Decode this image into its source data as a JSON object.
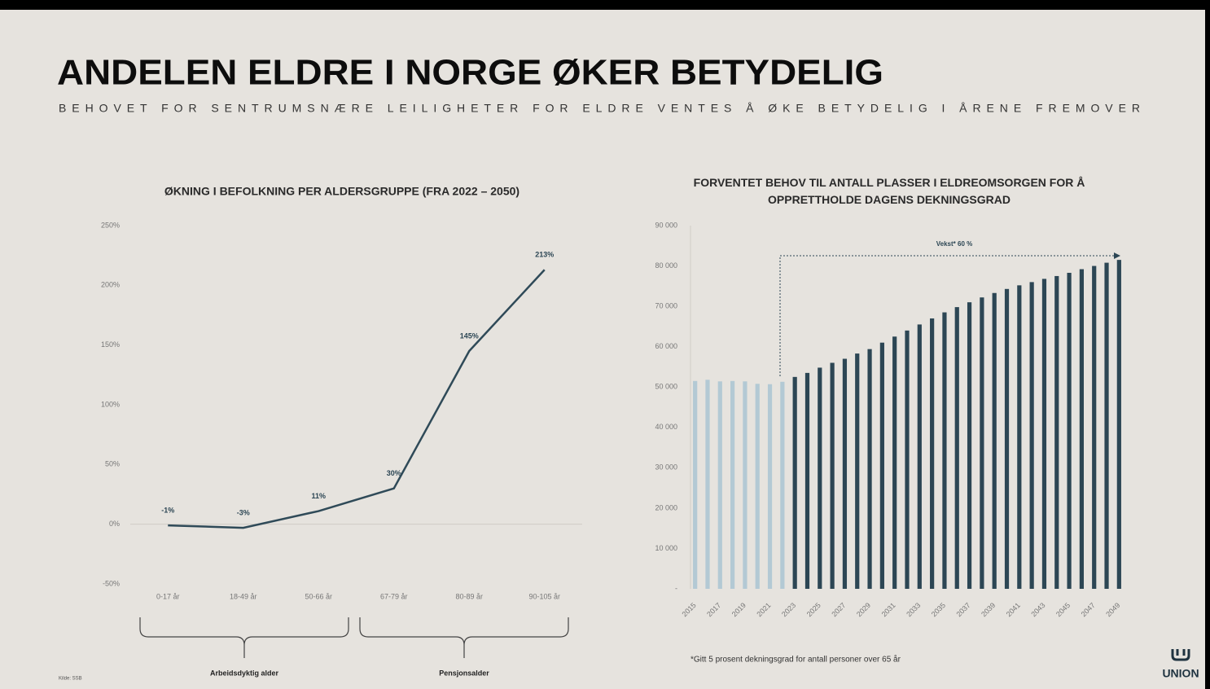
{
  "header": {
    "title": "ANDELEN ELDRE I NORGE ØKER BETYDELIG",
    "subtitle": "BEHOVET FOR SENTRUMSNÆRE LEILIGHETER FOR ELDRE VENTES Å ØKE BETYDELIG I ÅRENE FREMOVER"
  },
  "chart_data": [
    {
      "type": "line",
      "title": "ØKNING I BEFOLKNING PER ALDERSGRUPPE (FRA 2022 – 2050)",
      "categories": [
        "0-17 år",
        "18-49 år",
        "50-66 år",
        "67-79 år",
        "80-89 år",
        "90-105 år"
      ],
      "values": [
        -1,
        -3,
        11,
        30,
        145,
        213
      ],
      "value_labels": [
        "-1%",
        "-3%",
        "11%",
        "30%",
        "145%",
        "213%"
      ],
      "color": "#2f4a58",
      "ylim": [
        -50,
        250
      ],
      "yticks": [
        {
          "value": -50,
          "label": "-50%"
        },
        {
          "value": 0,
          "label": "0%"
        },
        {
          "value": 50,
          "label": "50%"
        },
        {
          "value": 100,
          "label": "100%"
        },
        {
          "value": 150,
          "label": "150%"
        },
        {
          "value": 200,
          "label": "200%"
        },
        {
          "value": 250,
          "label": "250%"
        }
      ],
      "annotations": [
        "Arbeidsdyktig alder",
        "Pensjonsalder"
      ],
      "source": "Kilde: SSB"
    },
    {
      "type": "bar",
      "title": "FORVENTET BEHOV TIL ANTALL PLASSER I ELDREOMSORGEN FOR Å OPPRETTHOLDE DAGENS DEKNINGSGRAD",
      "categories": [
        "2015",
        null,
        "2017",
        null,
        "2019",
        null,
        "2021",
        null,
        "2023",
        null,
        "2025",
        null,
        "2027",
        null,
        "2029",
        null,
        "2031",
        null,
        "2033",
        null,
        "2035",
        null,
        "2037",
        null,
        "2039",
        null,
        "2041",
        null,
        "2043",
        null,
        "2045",
        null,
        "2047",
        null,
        "2049"
      ],
      "values": [
        51500,
        51800,
        51400,
        51500,
        51400,
        50800,
        50700,
        51300,
        52500,
        53500,
        54800,
        56000,
        57000,
        58300,
        59400,
        61000,
        62500,
        64000,
        65500,
        67000,
        68500,
        69800,
        71000,
        72200,
        73300,
        74300,
        75200,
        76000,
        76800,
        77500,
        78300,
        79200,
        80000,
        80800,
        81500
      ],
      "colors": [
        "#b3c9d4",
        "#b3c9d4",
        "#b3c9d4",
        "#b3c9d4",
        "#b3c9d4",
        "#b3c9d4",
        "#b3c9d4",
        "#b3c9d4",
        "#2c4654",
        "#2c4654",
        "#2c4654",
        "#2c4654",
        "#2c4654",
        "#2c4654",
        "#2c4654",
        "#2c4654",
        "#2c4654",
        "#2c4654",
        "#2c4654",
        "#2c4654",
        "#2c4654",
        "#2c4654",
        "#2c4654",
        "#2c4654",
        "#2c4654",
        "#2c4654",
        "#2c4654",
        "#2c4654",
        "#2c4654",
        "#2c4654",
        "#2c4654",
        "#2c4654",
        "#2c4654",
        "#2c4654",
        "#2c4654"
      ],
      "ylim": [
        0,
        90000
      ],
      "yticks": [
        {
          "value": 0,
          "label": "-"
        },
        {
          "value": 10000,
          "label": "10 000"
        },
        {
          "value": 20000,
          "label": "20 000"
        },
        {
          "value": 30000,
          "label": "30 000"
        },
        {
          "value": 40000,
          "label": "40 000"
        },
        {
          "value": 50000,
          "label": "50 000"
        },
        {
          "value": 60000,
          "label": "60 000"
        },
        {
          "value": 70000,
          "label": "70 000"
        },
        {
          "value": 80000,
          "label": "80 000"
        },
        {
          "value": 90000,
          "label": "90 000"
        }
      ],
      "annotation": "Vekst* 60 %",
      "footnote": "*Gitt 5 prosent dekningsgrad for antall personer over 65 år"
    }
  ],
  "logo": "UNION"
}
